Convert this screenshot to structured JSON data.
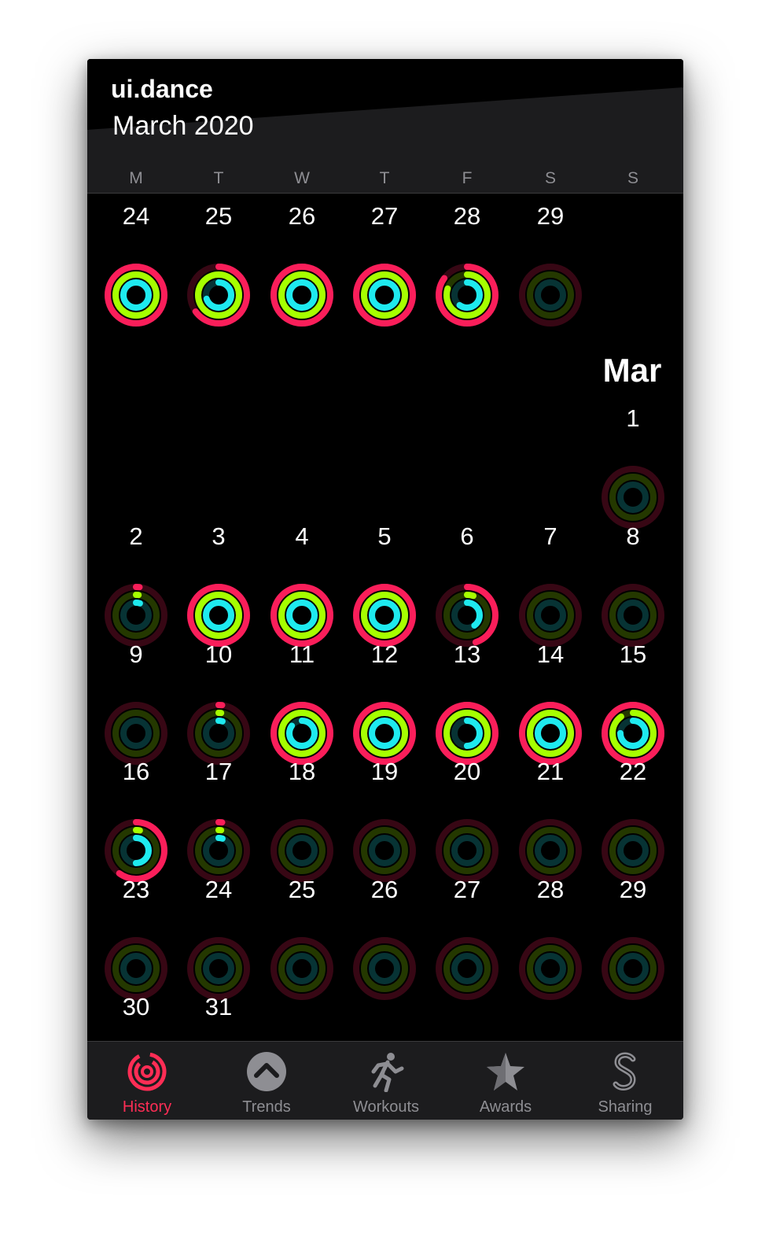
{
  "app_title": "ui.dance",
  "month_title": "March 2020",
  "weekdays": [
    "M",
    "T",
    "W",
    "T",
    "F",
    "S",
    "S"
  ],
  "month_label": "Mar",
  "colors": {
    "move": "#fa1e5a",
    "exercise": "#a6ff00",
    "stand": "#1eeaef",
    "active_tab": "#ff2d55",
    "inactive_tab": "#8e8e93"
  },
  "calendar": {
    "rows": [
      [
        {
          "day": "24",
          "move": 1.0,
          "exercise": 1.0,
          "stand": 1.0
        },
        {
          "day": "25",
          "move": 0.65,
          "exercise": 1.0,
          "stand": 0.7
        },
        {
          "day": "26",
          "move": 1.0,
          "exercise": 1.0,
          "stand": 1.0
        },
        {
          "day": "27",
          "move": 1.0,
          "exercise": 1.0,
          "stand": 1.0
        },
        {
          "day": "28",
          "move": 0.85,
          "exercise": 0.8,
          "stand": 0.6
        },
        {
          "day": "29",
          "move": 0.0,
          "exercise": 0.0,
          "stand": 0.0
        },
        null
      ],
      [
        null,
        null,
        null,
        null,
        null,
        null,
        {
          "day": "1",
          "move": 0.0,
          "exercise": 0.0,
          "stand": 0.0
        }
      ],
      [
        {
          "day": "2",
          "move": 0.02,
          "exercise": 0.02,
          "stand": 0.05
        },
        {
          "day": "3",
          "move": 1.0,
          "exercise": 1.0,
          "stand": 1.0
        },
        {
          "day": "4",
          "move": 1.0,
          "exercise": 1.0,
          "stand": 1.0
        },
        {
          "day": "5",
          "move": 1.0,
          "exercise": 1.0,
          "stand": 1.0
        },
        {
          "day": "6",
          "move": 0.45,
          "exercise": 0.05,
          "stand": 0.4
        },
        {
          "day": "7",
          "move": 0.0,
          "exercise": 0.0,
          "stand": 0.0
        },
        {
          "day": "8",
          "move": 0.0,
          "exercise": 0.0,
          "stand": 0.0
        }
      ],
      [
        {
          "day": "9",
          "move": 0.0,
          "exercise": 0.0,
          "stand": 0.0
        },
        {
          "day": "10",
          "move": 0.02,
          "exercise": 0.02,
          "stand": 0.05
        },
        {
          "day": "11",
          "move": 1.0,
          "exercise": 1.0,
          "stand": 0.85
        },
        {
          "day": "12",
          "move": 1.0,
          "exercise": 1.0,
          "stand": 1.0
        },
        {
          "day": "13",
          "move": 1.0,
          "exercise": 1.0,
          "stand": 0.5
        },
        {
          "day": "14",
          "move": 1.0,
          "exercise": 1.0,
          "stand": 1.0
        },
        {
          "day": "15",
          "move": 1.0,
          "exercise": 0.9,
          "stand": 0.75
        }
      ],
      [
        {
          "day": "16",
          "move": 0.6,
          "exercise": 0.03,
          "stand": 0.5
        },
        {
          "day": "17",
          "move": 0.02,
          "exercise": 0.02,
          "stand": 0.05
        },
        {
          "day": "18",
          "move": 0.0,
          "exercise": 0.0,
          "stand": 0.0
        },
        {
          "day": "19",
          "move": 0.0,
          "exercise": 0.0,
          "stand": 0.0
        },
        {
          "day": "20",
          "move": 0.0,
          "exercise": 0.0,
          "stand": 0.0
        },
        {
          "day": "21",
          "move": 0.0,
          "exercise": 0.0,
          "stand": 0.0
        },
        {
          "day": "22",
          "move": 0.0,
          "exercise": 0.0,
          "stand": 0.0
        }
      ],
      [
        {
          "day": "23",
          "move": 0.0,
          "exercise": 0.0,
          "stand": 0.0
        },
        {
          "day": "24",
          "move": 0.0,
          "exercise": 0.0,
          "stand": 0.0
        },
        {
          "day": "25",
          "move": 0.0,
          "exercise": 0.0,
          "stand": 0.0
        },
        {
          "day": "26",
          "move": 0.0,
          "exercise": 0.0,
          "stand": 0.0
        },
        {
          "day": "27",
          "move": 0.0,
          "exercise": 0.0,
          "stand": 0.0
        },
        {
          "day": "28",
          "move": 0.0,
          "exercise": 0.0,
          "stand": 0.0
        },
        {
          "day": "29",
          "move": 0.0,
          "exercise": 0.0,
          "stand": 0.0
        }
      ],
      [
        {
          "day": "30",
          "move": 0.0,
          "exercise": 0.0,
          "stand": 0.0
        },
        {
          "day": "31",
          "move": 0.0,
          "exercise": 0.0,
          "stand": 0.0
        },
        null,
        null,
        null,
        null,
        null
      ]
    ]
  },
  "tabs": [
    {
      "label": "History",
      "icon": "history-rings-icon",
      "active": true
    },
    {
      "label": "Trends",
      "icon": "trends-chevron-icon",
      "active": false
    },
    {
      "label": "Workouts",
      "icon": "running-figure-icon",
      "active": false
    },
    {
      "label": "Awards",
      "icon": "award-star-icon",
      "active": false
    },
    {
      "label": "Sharing",
      "icon": "sharing-s-icon",
      "active": false
    }
  ]
}
